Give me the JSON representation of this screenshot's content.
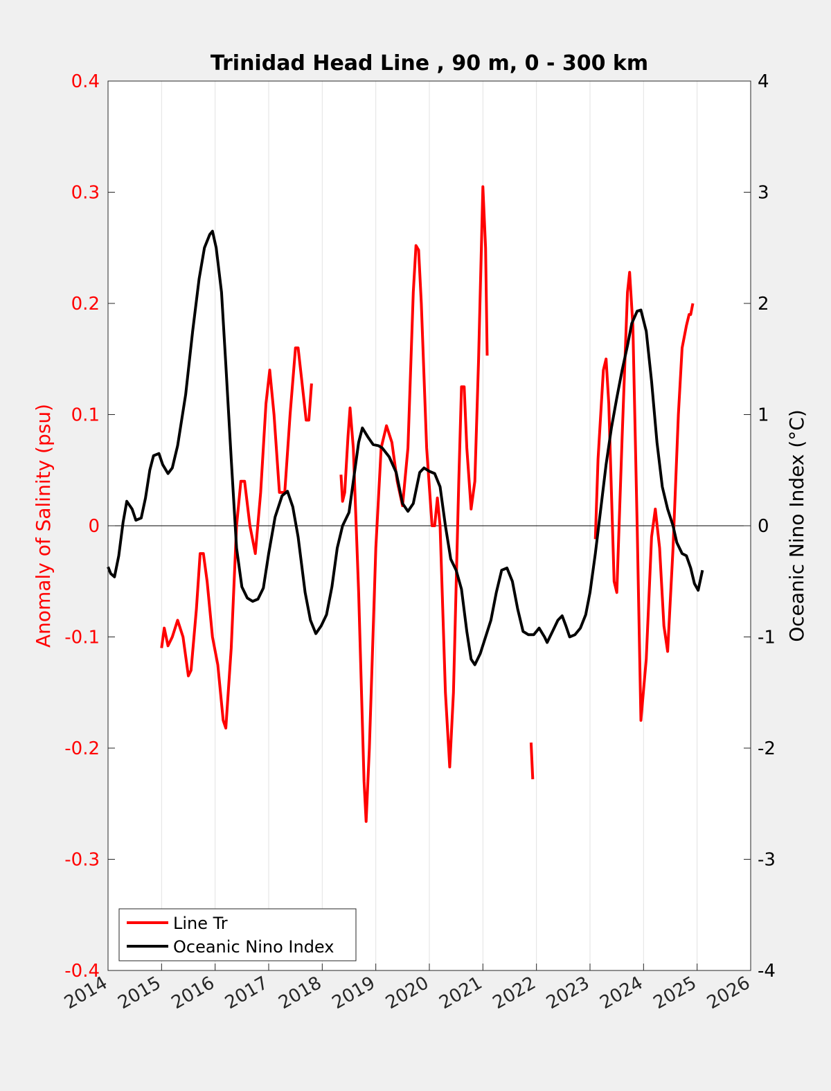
{
  "chart_data": {
    "type": "line",
    "title": "Trinidad Head Line , 90 m, 0 - 300 km",
    "ylabel_left": "Anomaly of Salinity (psu)",
    "ylabel_right": "Oceanic Nino Index (°C)",
    "xlim": [
      2014,
      2026
    ],
    "ylim_left": [
      -0.4,
      0.4
    ],
    "ylim_right": [
      -4,
      4
    ],
    "x_ticks": [
      "2014",
      "2015",
      "2016",
      "2017",
      "2018",
      "2019",
      "2020",
      "2021",
      "2022",
      "2023",
      "2024",
      "2025",
      "2026"
    ],
    "y_ticks_left": [
      "-0.4",
      "-0.3",
      "-0.2",
      "-0.1",
      "0",
      "0.1",
      "0.2",
      "0.3",
      "0.4"
    ],
    "y_ticks_right": [
      "-4",
      "-3",
      "-2",
      "-1",
      "0",
      "1",
      "2",
      "3",
      "4"
    ],
    "grid": "vertical",
    "legend_position": "bottom-left",
    "colors": {
      "salinity": "#ff0000",
      "oni": "#000000",
      "left_axis": "#ff0000",
      "right_axis": "#000000",
      "grid": "#e2e2e2"
    },
    "series": [
      {
        "name": "Line Tr",
        "axis": "left",
        "segments": [
          [
            [
              2015.0,
              -0.11
            ],
            [
              2015.05,
              -0.092
            ],
            [
              2015.12,
              -0.108
            ],
            [
              2015.2,
              -0.1
            ],
            [
              2015.3,
              -0.085
            ],
            [
              2015.4,
              -0.1
            ],
            [
              2015.5,
              -0.135
            ],
            [
              2015.55,
              -0.13
            ],
            [
              2015.65,
              -0.075
            ],
            [
              2015.72,
              -0.025
            ],
            [
              2015.78,
              -0.025
            ],
            [
              2015.85,
              -0.05
            ],
            [
              2015.95,
              -0.1
            ],
            [
              2016.05,
              -0.125
            ],
            [
              2016.15,
              -0.175
            ],
            [
              2016.2,
              -0.182
            ],
            [
              2016.3,
              -0.11
            ],
            [
              2016.4,
              0.0
            ],
            [
              2016.48,
              0.04
            ],
            [
              2016.55,
              0.04
            ],
            [
              2016.65,
              0.0
            ],
            [
              2016.75,
              -0.025
            ],
            [
              2016.85,
              0.03
            ],
            [
              2016.95,
              0.11
            ],
            [
              2017.02,
              0.14
            ],
            [
              2017.1,
              0.1
            ],
            [
              2017.2,
              0.03
            ],
            [
              2017.3,
              0.03
            ],
            [
              2017.4,
              0.1
            ],
            [
              2017.5,
              0.16
            ],
            [
              2017.55,
              0.16
            ],
            [
              2017.62,
              0.13
            ],
            [
              2017.7,
              0.095
            ],
            [
              2017.75,
              0.095
            ],
            [
              2017.8,
              0.128
            ]
          ],
          [
            [
              2018.35,
              0.046
            ],
            [
              2018.38,
              0.022
            ],
            [
              2018.42,
              0.03
            ],
            [
              2018.48,
              0.08
            ],
            [
              2018.52,
              0.106
            ],
            [
              2018.58,
              0.07
            ],
            [
              2018.68,
              -0.06
            ],
            [
              2018.78,
              -0.23
            ],
            [
              2018.82,
              -0.266
            ],
            [
              2018.88,
              -0.2
            ],
            [
              2019.0,
              -0.02
            ],
            [
              2019.1,
              0.07
            ],
            [
              2019.2,
              0.09
            ],
            [
              2019.3,
              0.075
            ],
            [
              2019.4,
              0.04
            ],
            [
              2019.5,
              0.018
            ],
            [
              2019.6,
              0.07
            ],
            [
              2019.7,
              0.21
            ],
            [
              2019.75,
              0.252
            ],
            [
              2019.8,
              0.248
            ],
            [
              2019.85,
              0.2
            ],
            [
              2019.95,
              0.07
            ],
            [
              2020.05,
              0.0
            ],
            [
              2020.1,
              0.0
            ],
            [
              2020.15,
              0.025
            ],
            [
              2020.2,
              0.0
            ],
            [
              2020.3,
              -0.15
            ],
            [
              2020.38,
              -0.217
            ],
            [
              2020.45,
              -0.15
            ],
            [
              2020.55,
              0.04
            ],
            [
              2020.6,
              0.125
            ],
            [
              2020.65,
              0.125
            ],
            [
              2020.7,
              0.07
            ],
            [
              2020.78,
              0.015
            ],
            [
              2020.85,
              0.04
            ],
            [
              2020.92,
              0.15
            ],
            [
              2021.0,
              0.305
            ],
            [
              2021.05,
              0.25
            ],
            [
              2021.08,
              0.153
            ]
          ],
          [
            [
              2021.9,
              -0.195
            ],
            [
              2021.93,
              -0.228
            ]
          ],
          [
            [
              2023.1,
              -0.012
            ],
            [
              2023.15,
              0.06
            ],
            [
              2023.25,
              0.14
            ],
            [
              2023.3,
              0.15
            ],
            [
              2023.35,
              0.11
            ],
            [
              2023.45,
              -0.05
            ],
            [
              2023.5,
              -0.06
            ],
            [
              2023.6,
              0.08
            ],
            [
              2023.7,
              0.21
            ],
            [
              2023.74,
              0.228
            ],
            [
              2023.8,
              0.18
            ],
            [
              2023.88,
              0.0
            ],
            [
              2023.95,
              -0.175
            ],
            [
              2024.05,
              -0.12
            ],
            [
              2024.15,
              -0.01
            ],
            [
              2024.22,
              0.015
            ],
            [
              2024.3,
              -0.02
            ],
            [
              2024.38,
              -0.09
            ],
            [
              2024.45,
              -0.113
            ],
            [
              2024.55,
              -0.02
            ],
            [
              2024.65,
              0.1
            ],
            [
              2024.72,
              0.16
            ],
            [
              2024.8,
              0.18
            ],
            [
              2024.85,
              0.19
            ],
            [
              2024.88,
              0.19
            ],
            [
              2024.92,
              0.2
            ]
          ]
        ]
      },
      {
        "name": "Oceanic Nino Index",
        "axis": "right",
        "segments": [
          [
            [
              2014.0,
              -0.37
            ],
            [
              2014.05,
              -0.43
            ],
            [
              2014.12,
              -0.46
            ],
            [
              2014.2,
              -0.27
            ],
            [
              2014.28,
              0.03
            ],
            [
              2014.35,
              0.22
            ],
            [
              2014.45,
              0.15
            ],
            [
              2014.52,
              0.05
            ],
            [
              2014.62,
              0.07
            ],
            [
              2014.7,
              0.25
            ],
            [
              2014.78,
              0.5
            ],
            [
              2014.85,
              0.63
            ],
            [
              2014.95,
              0.65
            ],
            [
              2015.02,
              0.55
            ],
            [
              2015.12,
              0.47
            ],
            [
              2015.2,
              0.52
            ],
            [
              2015.3,
              0.72
            ],
            [
              2015.45,
              1.18
            ],
            [
              2015.58,
              1.75
            ],
            [
              2015.7,
              2.22
            ],
            [
              2015.8,
              2.5
            ],
            [
              2015.9,
              2.62
            ],
            [
              2015.95,
              2.65
            ],
            [
              2016.02,
              2.5
            ],
            [
              2016.12,
              2.1
            ],
            [
              2016.2,
              1.45
            ],
            [
              2016.3,
              0.6
            ],
            [
              2016.4,
              -0.2
            ],
            [
              2016.5,
              -0.55
            ],
            [
              2016.6,
              -0.65
            ],
            [
              2016.7,
              -0.68
            ],
            [
              2016.8,
              -0.66
            ],
            [
              2016.9,
              -0.56
            ],
            [
              2017.0,
              -0.25
            ],
            [
              2017.12,
              0.08
            ],
            [
              2017.25,
              0.27
            ],
            [
              2017.35,
              0.31
            ],
            [
              2017.45,
              0.17
            ],
            [
              2017.55,
              -0.1
            ],
            [
              2017.68,
              -0.6
            ],
            [
              2017.78,
              -0.85
            ],
            [
              2017.88,
              -0.97
            ],
            [
              2017.98,
              -0.9
            ],
            [
              2018.08,
              -0.8
            ],
            [
              2018.18,
              -0.55
            ],
            [
              2018.28,
              -0.2
            ],
            [
              2018.38,
              0.0
            ],
            [
              2018.5,
              0.12
            ],
            [
              2018.58,
              0.4
            ],
            [
              2018.68,
              0.75
            ],
            [
              2018.75,
              0.88
            ],
            [
              2018.85,
              0.8
            ],
            [
              2018.95,
              0.73
            ],
            [
              2019.05,
              0.72
            ],
            [
              2019.12,
              0.7
            ],
            [
              2019.25,
              0.62
            ],
            [
              2019.38,
              0.48
            ],
            [
              2019.5,
              0.2
            ],
            [
              2019.6,
              0.13
            ],
            [
              2019.7,
              0.2
            ],
            [
              2019.82,
              0.48
            ],
            [
              2019.9,
              0.52
            ],
            [
              2020.0,
              0.49
            ],
            [
              2020.1,
              0.47
            ],
            [
              2020.2,
              0.35
            ],
            [
              2020.3,
              0.0
            ],
            [
              2020.4,
              -0.3
            ],
            [
              2020.5,
              -0.4
            ],
            [
              2020.6,
              -0.57
            ],
            [
              2020.7,
              -0.95
            ],
            [
              2020.78,
              -1.2
            ],
            [
              2020.85,
              -1.25
            ],
            [
              2020.95,
              -1.15
            ],
            [
              2021.05,
              -1.0
            ],
            [
              2021.15,
              -0.85
            ],
            [
              2021.25,
              -0.6
            ],
            [
              2021.35,
              -0.4
            ],
            [
              2021.45,
              -0.38
            ],
            [
              2021.55,
              -0.5
            ],
            [
              2021.65,
              -0.75
            ],
            [
              2021.75,
              -0.95
            ],
            [
              2021.85,
              -0.98
            ],
            [
              2021.95,
              -0.98
            ],
            [
              2022.05,
              -0.92
            ],
            [
              2022.15,
              -1.0
            ],
            [
              2022.2,
              -1.05
            ],
            [
              2022.3,
              -0.95
            ],
            [
              2022.4,
              -0.85
            ],
            [
              2022.48,
              -0.81
            ],
            [
              2022.55,
              -0.9
            ],
            [
              2022.62,
              -1.0
            ],
            [
              2022.72,
              -0.98
            ],
            [
              2022.82,
              -0.92
            ],
            [
              2022.92,
              -0.8
            ],
            [
              2023.0,
              -0.6
            ],
            [
              2023.1,
              -0.25
            ],
            [
              2023.2,
              0.15
            ],
            [
              2023.3,
              0.55
            ],
            [
              2023.4,
              0.88
            ],
            [
              2023.5,
              1.15
            ],
            [
              2023.6,
              1.4
            ],
            [
              2023.7,
              1.62
            ],
            [
              2023.78,
              1.82
            ],
            [
              2023.88,
              1.93
            ],
            [
              2023.95,
              1.94
            ],
            [
              2024.05,
              1.75
            ],
            [
              2024.15,
              1.3
            ],
            [
              2024.25,
              0.75
            ],
            [
              2024.35,
              0.35
            ],
            [
              2024.45,
              0.15
            ],
            [
              2024.55,
              0.0
            ],
            [
              2024.62,
              -0.15
            ],
            [
              2024.72,
              -0.25
            ],
            [
              2024.8,
              -0.27
            ],
            [
              2024.88,
              -0.38
            ],
            [
              2024.95,
              -0.52
            ],
            [
              2025.02,
              -0.58
            ],
            [
              2025.1,
              -0.4
            ]
          ]
        ]
      }
    ]
  }
}
